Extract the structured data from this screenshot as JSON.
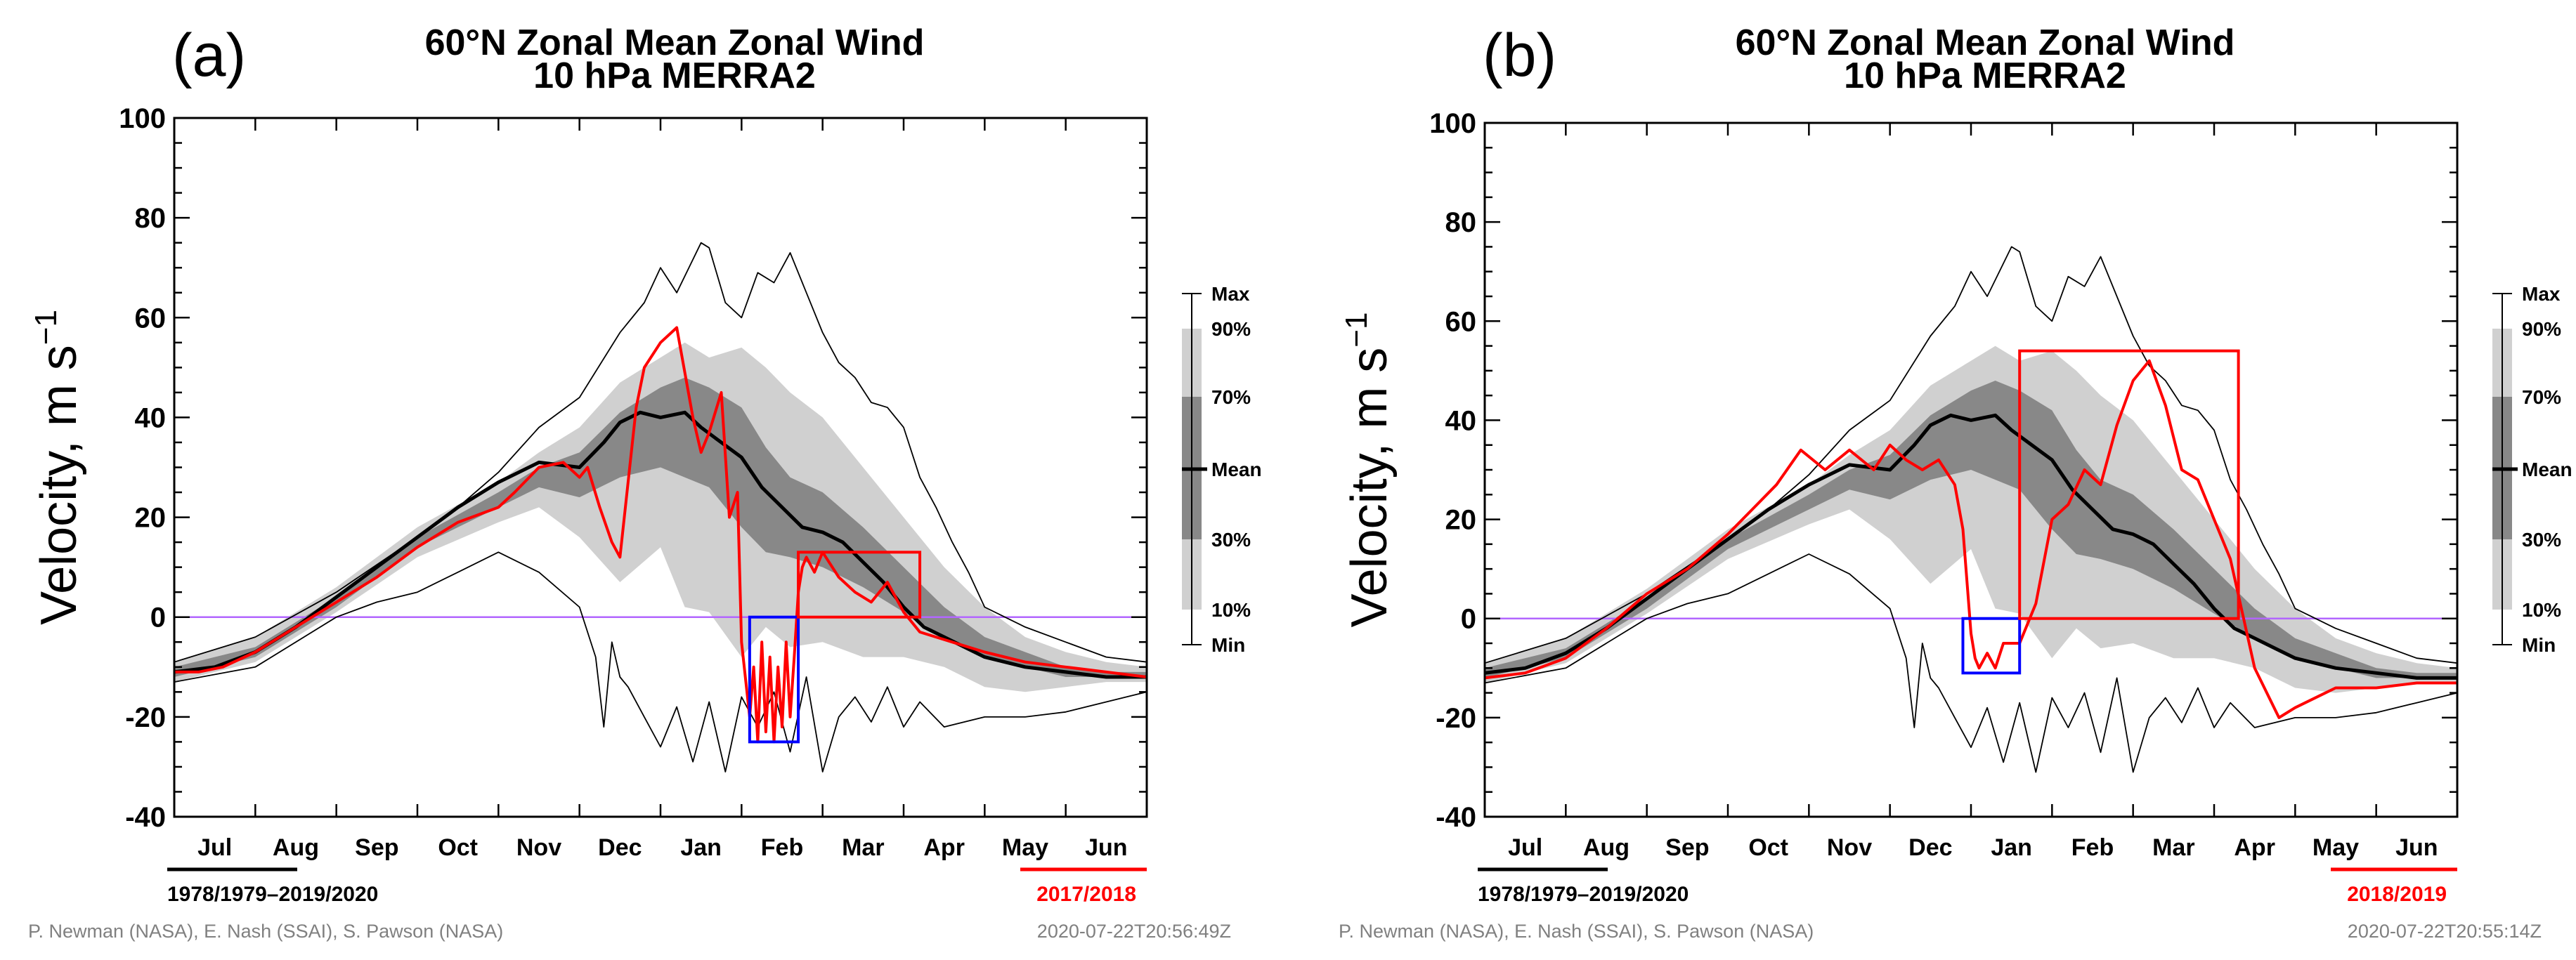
{
  "chart_data": [
    {
      "type": "line",
      "panel_label": "(a)",
      "title_line1": "60°N Zonal Mean Zonal Wind",
      "title_line2": "10 hPa    MERRA2",
      "ylabel_main": "Velocity, m s",
      "ylabel_exp": "−1",
      "ylim": [
        -40,
        100
      ],
      "yticks": [
        -40,
        -20,
        0,
        20,
        40,
        60,
        80,
        100
      ],
      "months": [
        "Jul",
        "Aug",
        "Sep",
        "Oct",
        "Nov",
        "Dec",
        "Jan",
        "Feb",
        "Mar",
        "Apr",
        "May",
        "Jun"
      ],
      "legend": [
        "Max",
        "90%",
        "70%",
        "Mean",
        "30%",
        "10%",
        "Min"
      ],
      "climatology_label": "1978/1979–2019/2020",
      "year_label": "2017/2018",
      "credit": "P. Newman (NASA), E. Nash (SSAI), S. Pawson (NASA)",
      "timestamp": "2020-07-22T20:56:49Z",
      "series": [
        {
          "name": "2017/2018",
          "color": "#ff0000",
          "x": [
            0,
            0.3,
            0.6,
            1,
            1.5,
            2,
            2.5,
            3,
            3.5,
            4,
            4.2,
            4.5,
            4.8,
            5.0,
            5.1,
            5.25,
            5.4,
            5.5,
            5.7,
            5.8,
            6.0,
            6.2,
            6.4,
            6.5,
            6.6,
            6.75,
            6.85,
            6.95,
            7.0,
            7.1,
            7.15,
            7.2,
            7.25,
            7.3,
            7.35,
            7.4,
            7.45,
            7.5,
            7.55,
            7.6,
            7.65,
            7.7,
            7.75,
            7.8,
            7.9,
            8.0,
            8.2,
            8.4,
            8.6,
            8.8,
            9.0,
            9.2,
            9.6,
            10,
            10.5,
            11,
            11.5,
            12
          ],
          "y": [
            -11,
            -11,
            -10,
            -7,
            -2,
            3,
            8,
            14,
            19,
            22,
            25,
            30,
            31,
            28,
            30,
            22,
            15,
            12,
            42,
            50,
            55,
            58,
            40,
            33,
            37,
            45,
            20,
            25,
            -5,
            -20,
            -10,
            -25,
            -5,
            -23,
            -8,
            -25,
            -10,
            -22,
            -5,
            -20,
            -8,
            5,
            10,
            12,
            9,
            13,
            8,
            5,
            3,
            7,
            1,
            -3,
            -5,
            -7,
            -9,
            -10,
            -11,
            -12
          ]
        },
        {
          "name": "Mean",
          "color": "#000000",
          "x": [
            0,
            0.5,
            1,
            1.5,
            2,
            2.5,
            3,
            3.5,
            4,
            4.5,
            5,
            5.3,
            5.5,
            5.75,
            6,
            6.3,
            6.5,
            6.75,
            7,
            7.25,
            7.5,
            7.75,
            8,
            8.25,
            8.5,
            8.75,
            9,
            9.25,
            9.5,
            9.75,
            10,
            10.5,
            11,
            11.5,
            12
          ],
          "y": [
            -11,
            -10,
            -7,
            -2,
            4,
            10,
            16,
            22,
            27,
            31,
            30,
            35,
            39,
            41,
            40,
            41,
            38,
            35,
            32,
            26,
            22,
            18,
            17,
            15,
            11,
            7,
            2,
            -2,
            -4,
            -6,
            -8,
            -10,
            -11,
            -12,
            -12
          ]
        },
        {
          "name": "Max",
          "color": "#000000",
          "x": [
            0,
            1,
            2,
            3,
            3.5,
            4,
            4.5,
            5,
            5.5,
            5.8,
            6,
            6.2,
            6.5,
            6.6,
            6.8,
            7,
            7.2,
            7.4,
            7.6,
            7.8,
            8,
            8.2,
            8.4,
            8.6,
            8.8,
            9,
            9.2,
            9.4,
            9.6,
            9.8,
            10,
            10.5,
            11,
            11.5,
            12
          ],
          "y": [
            -9,
            -4,
            5,
            16,
            22,
            29,
            38,
            44,
            57,
            63,
            70,
            65,
            75,
            74,
            63,
            60,
            69,
            67,
            73,
            65,
            57,
            51,
            48,
            43,
            42,
            38,
            28,
            22,
            15,
            9,
            2,
            -2,
            -5,
            -8,
            -9
          ]
        },
        {
          "name": "Min",
          "color": "#000000",
          "x": [
            0,
            1,
            2,
            2.5,
            3,
            3.5,
            4,
            4.5,
            5,
            5.2,
            5.3,
            5.4,
            5.5,
            5.6,
            5.8,
            6,
            6.2,
            6.4,
            6.6,
            6.8,
            7,
            7.2,
            7.4,
            7.6,
            7.8,
            8,
            8.2,
            8.4,
            8.6,
            8.8,
            9,
            9.2,
            9.5,
            10,
            10.5,
            11,
            11.5,
            12
          ],
          "y": [
            -13,
            -10,
            0,
            3,
            5,
            9,
            13,
            9,
            2,
            -8,
            -22,
            -5,
            -12,
            -14,
            -20,
            -26,
            -18,
            -29,
            -17,
            -31,
            -16,
            -22,
            -15,
            -27,
            -12,
            -31,
            -20,
            -16,
            -21,
            -14,
            -22,
            -17,
            -22,
            -20,
            -20,
            -19,
            -17,
            -15
          ]
        }
      ],
      "bands": [
        {
          "name": "10%-90%",
          "color": "#d0d0d0",
          "x": [
            0,
            1,
            2,
            3,
            4,
            4.5,
            5,
            5.5,
            6,
            6.3,
            6.6,
            7,
            7.3,
            7.6,
            8,
            8.5,
            9,
            9.5,
            10,
            10.5,
            11,
            11.5,
            12
          ],
          "upper": [
            -9,
            -4,
            6,
            18,
            27,
            33,
            38,
            47,
            52,
            55,
            52,
            54,
            50,
            45,
            40,
            30,
            20,
            10,
            2,
            -4,
            -7,
            -9,
            -10
          ],
          "lower": [
            -13,
            -9,
            1,
            12,
            19,
            22,
            16,
            7,
            14,
            2,
            1,
            -8,
            -2,
            -6,
            -5,
            -8,
            -8,
            -10,
            -14,
            -15,
            -14,
            -13,
            -13
          ]
        },
        {
          "name": "30%-70%",
          "color": "#888888",
          "x": [
            0,
            1,
            2,
            3,
            4,
            4.5,
            5,
            5.5,
            6,
            6.3,
            6.6,
            7,
            7.3,
            7.6,
            8,
            8.5,
            9,
            9.5,
            10,
            10.5,
            11,
            11.5,
            12
          ],
          "upper": [
            -10,
            -6,
            4,
            16,
            25,
            30,
            33,
            41,
            46,
            48,
            46,
            42,
            34,
            28,
            25,
            18,
            10,
            2,
            -4,
            -7,
            -10,
            -11,
            -11
          ],
          "lower": [
            -12,
            -8,
            2,
            14,
            22,
            26,
            24,
            28,
            30,
            28,
            26,
            18,
            13,
            12,
            10,
            6,
            1,
            -4,
            -8,
            -10,
            -12,
            -12,
            -12
          ]
        }
      ],
      "highlight_boxes": [
        {
          "color": "#0000ff",
          "x0": 7.1,
          "x1": 7.7,
          "y0": -25,
          "y1": 0
        },
        {
          "color": "#ff0000",
          "x0": 7.7,
          "x1": 9.2,
          "y0": 0,
          "y1": 13
        }
      ]
    },
    {
      "type": "line",
      "panel_label": "(b)",
      "title_line1": "60°N Zonal Mean Zonal Wind",
      "title_line2": "10 hPa    MERRA2",
      "ylabel_main": "Velocity, m s",
      "ylabel_exp": "−1",
      "ylim": [
        -40,
        100
      ],
      "yticks": [
        -40,
        -20,
        0,
        20,
        40,
        60,
        80,
        100
      ],
      "months": [
        "Jul",
        "Aug",
        "Sep",
        "Oct",
        "Nov",
        "Dec",
        "Jan",
        "Feb",
        "Mar",
        "Apr",
        "May",
        "Jun"
      ],
      "legend": [
        "Max",
        "90%",
        "70%",
        "Mean",
        "30%",
        "10%",
        "Min"
      ],
      "climatology_label": "1978/1979–2019/2020",
      "year_label": "2018/2019",
      "credit": "P. Newman (NASA), E. Nash (SSAI), S. Pawson (NASA)",
      "timestamp": "2020-07-22T20:55:14Z",
      "series": [
        {
          "name": "2018/2019",
          "color": "#ff0000",
          "x": [
            0,
            0.5,
            1,
            1.5,
            2,
            2.5,
            3,
            3.3,
            3.6,
            3.9,
            4.2,
            4.5,
            4.8,
            5.0,
            5.2,
            5.4,
            5.6,
            5.8,
            5.9,
            6.0,
            6.05,
            6.1,
            6.2,
            6.3,
            6.4,
            6.6,
            6.8,
            7.0,
            7.2,
            7.4,
            7.6,
            7.8,
            8.0,
            8.2,
            8.4,
            8.6,
            8.8,
            9.0,
            9.2,
            9.5,
            9.8,
            10,
            10.5,
            11,
            11.5,
            12
          ],
          "y": [
            -12,
            -11,
            -8,
            -2,
            5,
            10,
            17,
            22,
            27,
            34,
            30,
            34,
            30,
            35,
            32,
            30,
            32,
            27,
            18,
            -3,
            -8,
            -10,
            -7,
            -10,
            -5,
            -5,
            3,
            20,
            23,
            30,
            27,
            39,
            48,
            52,
            43,
            30,
            28,
            20,
            12,
            -10,
            -20,
            -18,
            -14,
            -14,
            -13,
            -13
          ]
        },
        {
          "name": "Mean",
          "color": "#000000",
          "x": [
            0,
            0.5,
            1,
            1.5,
            2,
            2.5,
            3,
            3.5,
            4,
            4.5,
            5,
            5.3,
            5.5,
            5.75,
            6,
            6.3,
            6.5,
            6.75,
            7,
            7.25,
            7.5,
            7.75,
            8,
            8.25,
            8.5,
            8.75,
            9,
            9.25,
            9.5,
            9.75,
            10,
            10.5,
            11,
            11.5,
            12
          ],
          "y": [
            -11,
            -10,
            -7,
            -2,
            4,
            10,
            16,
            22,
            27,
            31,
            30,
            35,
            39,
            41,
            40,
            41,
            38,
            35,
            32,
            26,
            22,
            18,
            17,
            15,
            11,
            7,
            2,
            -2,
            -4,
            -6,
            -8,
            -10,
            -11,
            -12,
            -12
          ]
        },
        {
          "name": "Max",
          "color": "#000000",
          "x": [
            0,
            1,
            2,
            3,
            3.5,
            4,
            4.5,
            5,
            5.5,
            5.8,
            6,
            6.2,
            6.5,
            6.6,
            6.8,
            7,
            7.2,
            7.4,
            7.6,
            7.8,
            8,
            8.2,
            8.4,
            8.6,
            8.8,
            9,
            9.2,
            9.4,
            9.6,
            9.8,
            10,
            10.5,
            11,
            11.5,
            12
          ],
          "y": [
            -9,
            -4,
            5,
            16,
            22,
            29,
            38,
            44,
            57,
            63,
            70,
            65,
            75,
            74,
            63,
            60,
            69,
            67,
            73,
            65,
            57,
            51,
            48,
            43,
            42,
            38,
            28,
            22,
            15,
            9,
            2,
            -2,
            -5,
            -8,
            -9
          ]
        },
        {
          "name": "Min",
          "color": "#000000",
          "x": [
            0,
            1,
            2,
            2.5,
            3,
            3.5,
            4,
            4.5,
            5,
            5.2,
            5.3,
            5.4,
            5.5,
            5.6,
            5.8,
            6,
            6.2,
            6.4,
            6.6,
            6.8,
            7,
            7.2,
            7.4,
            7.6,
            7.8,
            8,
            8.2,
            8.4,
            8.6,
            8.8,
            9,
            9.2,
            9.5,
            10,
            10.5,
            11,
            11.5,
            12
          ],
          "y": [
            -13,
            -10,
            0,
            3,
            5,
            9,
            13,
            9,
            2,
            -8,
            -22,
            -5,
            -12,
            -14,
            -20,
            -26,
            -18,
            -29,
            -17,
            -31,
            -16,
            -22,
            -15,
            -27,
            -12,
            -31,
            -20,
            -16,
            -21,
            -14,
            -22,
            -17,
            -22,
            -20,
            -20,
            -19,
            -17,
            -15
          ]
        }
      ],
      "bands": [
        {
          "name": "10%-90%",
          "color": "#d0d0d0",
          "x": [
            0,
            1,
            2,
            3,
            4,
            4.5,
            5,
            5.5,
            6,
            6.3,
            6.6,
            7,
            7.3,
            7.6,
            8,
            8.5,
            9,
            9.5,
            10,
            10.5,
            11,
            11.5,
            12
          ],
          "upper": [
            -9,
            -4,
            6,
            18,
            27,
            33,
            38,
            47,
            52,
            55,
            52,
            54,
            50,
            45,
            40,
            30,
            20,
            10,
            2,
            -4,
            -7,
            -9,
            -10
          ],
          "lower": [
            -13,
            -9,
            1,
            12,
            19,
            22,
            16,
            7,
            14,
            2,
            1,
            -8,
            -2,
            -6,
            -5,
            -8,
            -8,
            -10,
            -14,
            -15,
            -14,
            -13,
            -13
          ]
        },
        {
          "name": "30%-70%",
          "color": "#888888",
          "x": [
            0,
            1,
            2,
            3,
            4,
            4.5,
            5,
            5.5,
            6,
            6.3,
            6.6,
            7,
            7.3,
            7.6,
            8,
            8.5,
            9,
            9.5,
            10,
            10.5,
            11,
            11.5,
            12
          ],
          "upper": [
            -10,
            -6,
            4,
            16,
            25,
            30,
            33,
            41,
            46,
            48,
            46,
            42,
            34,
            28,
            25,
            18,
            10,
            2,
            -4,
            -7,
            -10,
            -11,
            -11
          ],
          "lower": [
            -12,
            -8,
            2,
            14,
            22,
            26,
            24,
            28,
            30,
            28,
            26,
            18,
            13,
            12,
            10,
            6,
            1,
            -4,
            -8,
            -10,
            -12,
            -12,
            -12
          ]
        }
      ],
      "highlight_boxes": [
        {
          "color": "#0000ff",
          "x0": 5.9,
          "x1": 6.6,
          "y0": -11,
          "y1": 0
        },
        {
          "color": "#ff0000",
          "x0": 6.6,
          "x1": 9.3,
          "y0": 0,
          "y1": 54
        }
      ]
    }
  ]
}
